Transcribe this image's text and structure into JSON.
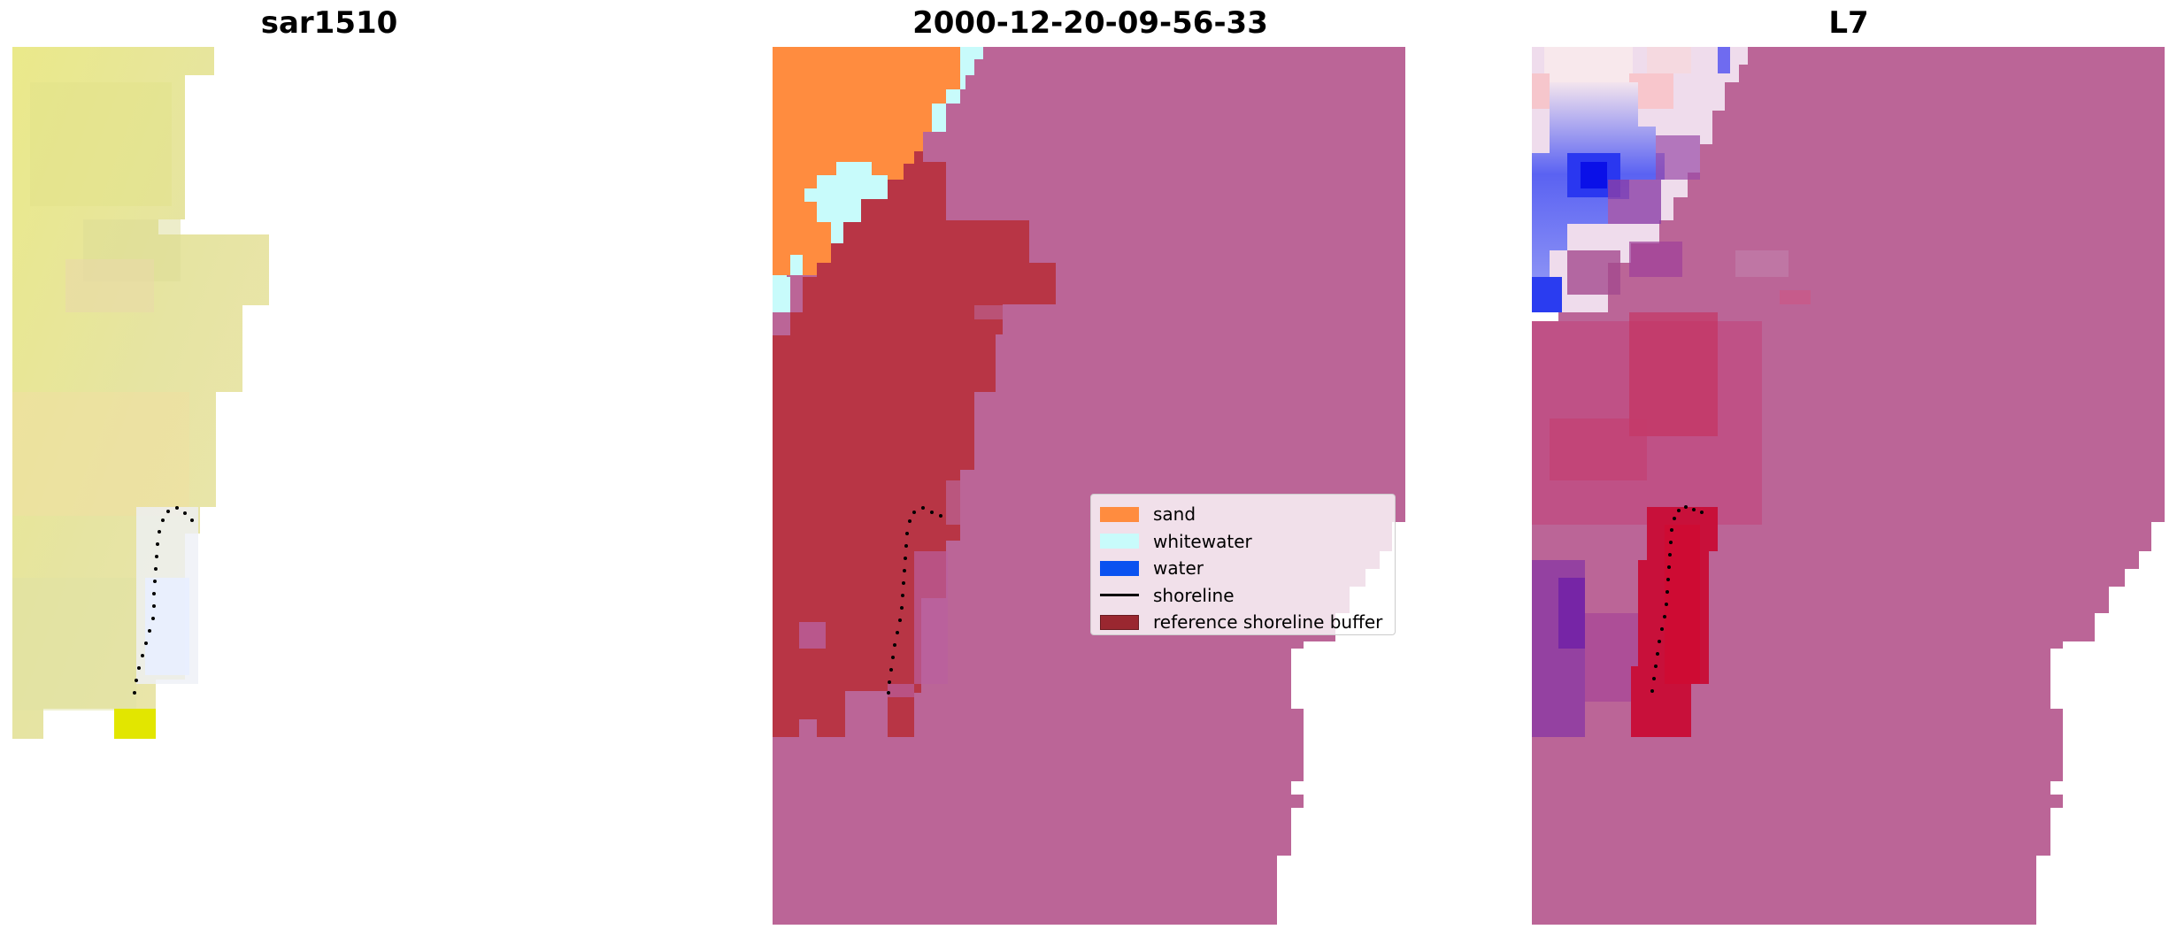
{
  "panels": [
    {
      "title": "sar1510",
      "kind": "rgb-image"
    },
    {
      "title": "2000-12-20-09-56-33",
      "kind": "classification-overlay"
    },
    {
      "title": "L7",
      "kind": "index-overlay"
    }
  ],
  "legend": {
    "placement": "center-right of middle panel",
    "items": [
      {
        "label": "sand",
        "color": "#ff8c3f",
        "type": "patch"
      },
      {
        "label": "whitewater",
        "color": "#c8fbfb",
        "type": "patch"
      },
      {
        "label": "water",
        "color": "#0a52f0",
        "type": "patch"
      },
      {
        "label": "shoreline",
        "color": "#000000",
        "type": "line"
      },
      {
        "label": "reference shoreline buffer",
        "color": "#9a2730",
        "type": "patch"
      }
    ]
  },
  "colors": {
    "buffer_overlay": "#bb6597",
    "sand": "#ff8c3f",
    "whitewater": "#c8fbfb",
    "buffer_dark": "#b83545",
    "rgb_base": "#ece9a0",
    "water_blue": "#1f2ef0",
    "index_red": "#c8103a"
  }
}
